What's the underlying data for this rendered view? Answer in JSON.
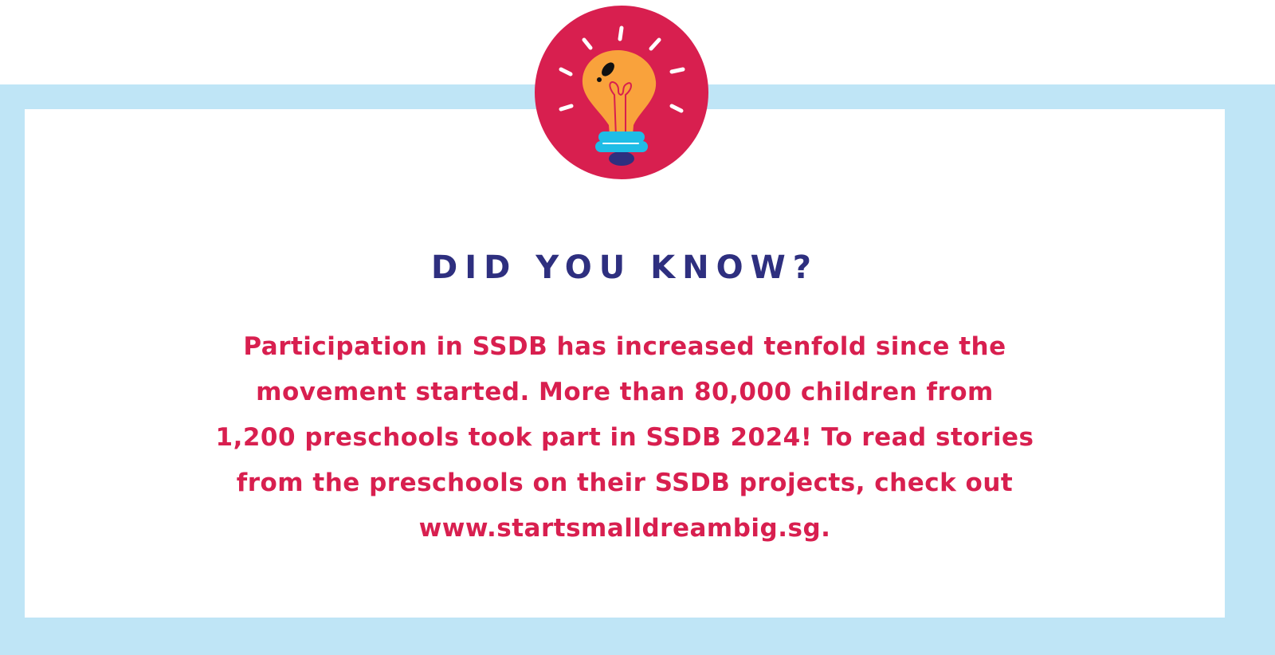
{
  "colors": {
    "frame": "#bfe5f6",
    "badge": "#d81f4f",
    "title": "#2e2f7f",
    "body": "#d81f4f",
    "bulb": "#f9a23c",
    "bulb_base": "#1fbde6"
  },
  "icon": "light-bulb-icon",
  "title": "DID YOU KNOW?",
  "body_lines": [
    "Participation in SSDB has increased tenfold since the",
    "movement started. More than 80,000 children from",
    "1,200 preschools took part in SSDB 2024! To read stories",
    "from the preschools on their SSDB projects, check out",
    "www.startsmalldreambig.sg."
  ]
}
